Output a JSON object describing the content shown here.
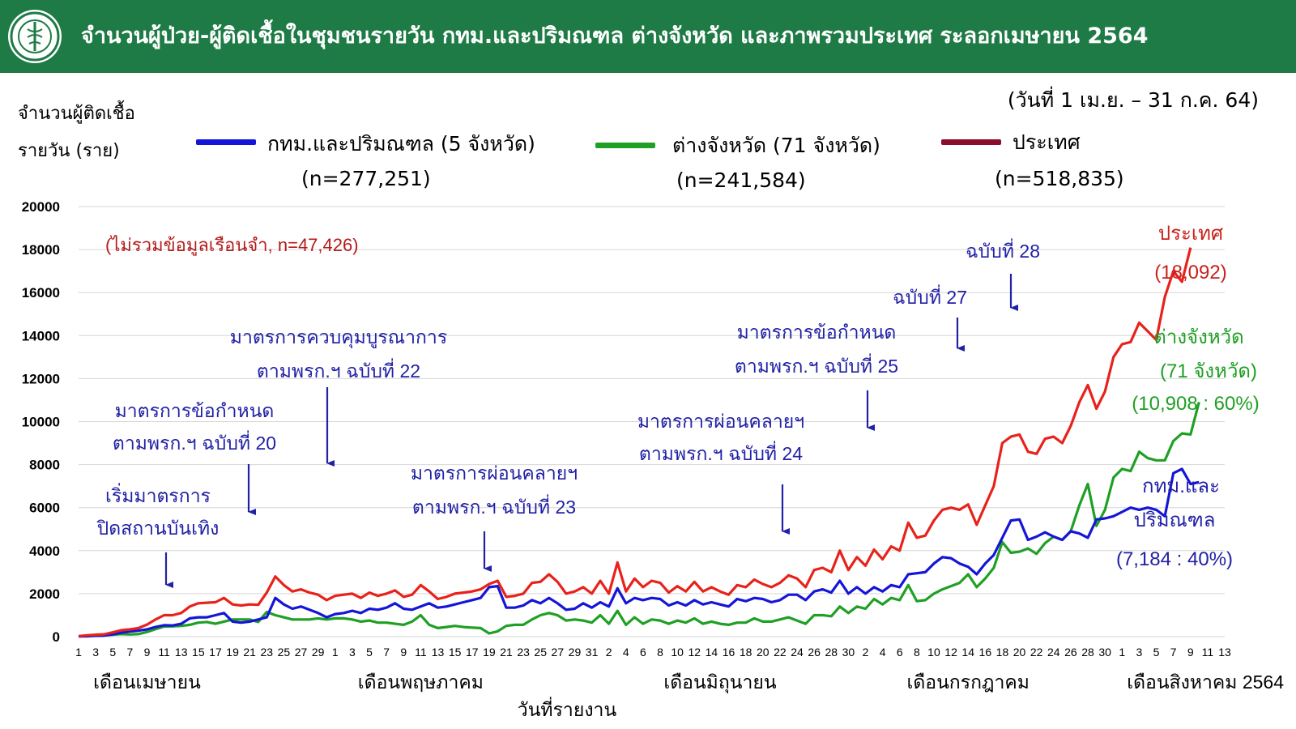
{
  "header": {
    "title": "จำนวนผู้ป่วย-ผู้ติดเชื้อในชุมชนรายวัน กทม.และปริมณฑล ต่างจังหวัด และภาพรวมประเทศ ระลอกเมษายน 2564",
    "logo_icon": "ministry-of-public-health-seal-icon",
    "bg_color": "#1e7b45"
  },
  "period_label": "(วันที่ 1 เม.ย. – 31 ก.ค. 64)",
  "ylabel_line1": "จำนวนผู้ติดเชื้อ",
  "ylabel_line2": "รายวัน (ราย)",
  "legend": [
    {
      "name": "กทม.และปริมณฑล (5 จังหวัด)",
      "n": "(n=277,251)",
      "color": "#1515d8"
    },
    {
      "name": "ต่างจังหวัด (71 จังหวัด)",
      "n": "(n=241,584)",
      "color": "#1fa024"
    },
    {
      "name": "ประเทศ",
      "n": "(n=518,835)",
      "color": "#8b0d2e"
    }
  ],
  "prison_note": "(ไม่รวมข้อมูลเรือนจำ, n=47,426)",
  "annotations": [
    {
      "lines": [
        "เริ่มมาตรการ",
        "ปิดสถานบันเทิง"
      ],
      "day": 11
    },
    {
      "lines": [
        "มาตรการข้อกำหนด",
        "ตามพรก.ฯ ฉบับที่ 20"
      ],
      "day": 18
    },
    {
      "lines": [
        "มาตรการควบคุมบูรณาการ",
        "ตามพรก.ฯ ฉบับที่ 22"
      ],
      "day": 29
    },
    {
      "lines": [
        "มาตรการผ่อนคลายฯ",
        "ตามพรก.ฯ ฉบับที่ 23"
      ],
      "day": 48
    },
    {
      "lines": [
        "มาตรการผ่อนคลายฯ",
        "ตามพรก.ฯ ฉบับที่ 24"
      ],
      "day": 82
    },
    {
      "lines": [
        "มาตรการข้อกำหนด",
        "ตามพรก.ฯ ฉบับที่ 25"
      ],
      "day": 92
    },
    {
      "lines": [
        "ฉบับที่ 27"
      ],
      "day": 102
    },
    {
      "lines": [
        "ฉบับที่ 28"
      ],
      "day": 108
    }
  ],
  "end_labels": {
    "country": [
      "ประเทศ",
      "(18,092)"
    ],
    "provinces": [
      "ต่างจังหวัด",
      "(71 จังหวัด)",
      "(10,908 : 60%)"
    ],
    "bkk": [
      "กทม.และ",
      "ปริมณฑล",
      "(7,184 : 40%)"
    ]
  },
  "month_labels": [
    {
      "label": "เดือนเมษายน",
      "day": 8
    },
    {
      "label": "เดือนพฤษภาคม",
      "day": 40
    },
    {
      "label": "เดือนมิถุนายน",
      "day": 75
    },
    {
      "label": "เดือนกรกฎาคม",
      "day": 104
    },
    {
      "label": "เดือนสิงหาคม 2564",
      "day": 131
    }
  ],
  "xlabel": "วันที่รายงาน",
  "chart_data": {
    "type": "line",
    "x_tick_labels": [
      "1",
      "3",
      "5",
      "7",
      "9",
      "11",
      "13",
      "15",
      "17",
      "19",
      "21",
      "23",
      "25",
      "27",
      "29",
      "1",
      "3",
      "5",
      "7",
      "9",
      "11",
      "13",
      "15",
      "17",
      "19",
      "21",
      "23",
      "25",
      "27",
      "29",
      "31",
      "2",
      "4",
      "6",
      "8",
      "10",
      "12",
      "14",
      "16",
      "18",
      "20",
      "22",
      "24",
      "26",
      "28",
      "30",
      "2",
      "4",
      "6",
      "8",
      "10",
      "12",
      "14",
      "16",
      "18",
      "20",
      "22",
      "24",
      "26",
      "28",
      "30",
      "1",
      "3",
      "5",
      "7",
      "9",
      "11",
      "13"
    ],
    "ylim": [
      0,
      20000
    ],
    "yticks": [
      "0",
      "2000",
      "4000",
      "6000",
      "8000",
      "10000",
      "12000",
      "14000",
      "16000",
      "18000",
      "20000"
    ],
    "grid": "horizontal",
    "series": [
      {
        "name": "ประเทศ",
        "color": "#e8221b",
        "values": [
          26,
          60,
          90,
          110,
          200,
          300,
          340,
          400,
          560,
          800,
          1000,
          1000,
          1100,
          1400,
          1550,
          1580,
          1600,
          1800,
          1500,
          1450,
          1500,
          1480,
          2050,
          2800,
          2400,
          2100,
          2200,
          2050,
          1950,
          1700,
          1900,
          1950,
          2000,
          1800,
          2050,
          1900,
          2000,
          2150,
          1850,
          1950,
          2400,
          2100,
          1750,
          1850,
          2000,
          2050,
          2100,
          2200,
          2450,
          2600,
          1850,
          1900,
          2000,
          2500,
          2550,
          2900,
          2550,
          2000,
          2100,
          2300,
          2000,
          2600,
          2000,
          3450,
          2100,
          2700,
          2300,
          2600,
          2500,
          2050,
          2350,
          2100,
          2550,
          2100,
          2300,
          2100,
          1950,
          2400,
          2300,
          2650,
          2450,
          2300,
          2500,
          2850,
          2700,
          2300,
          3100,
          3200,
          3000,
          4000,
          3100,
          3700,
          3300,
          4050,
          3600,
          4200,
          4000,
          5300,
          4600,
          4700,
          5400,
          5900,
          6000,
          5900,
          6150,
          5200,
          6100,
          7000,
          9000,
          9300,
          9400,
          8600,
          8500,
          9200,
          9300,
          9000,
          9800,
          10900,
          11700,
          10600,
          11400,
          13000,
          13600,
          13700,
          14600,
          14200,
          13800,
          15800,
          17000,
          16500,
          18092
        ]
      },
      {
        "name": "กทม.และปริมณฑล (5 จังหวัด)",
        "color": "#1515d8",
        "values": [
          10,
          20,
          40,
          50,
          110,
          180,
          240,
          280,
          340,
          450,
          530,
          520,
          600,
          850,
          900,
          900,
          1000,
          1100,
          700,
          650,
          700,
          800,
          900,
          1800,
          1500,
          1300,
          1400,
          1250,
          1100,
          900,
          1050,
          1100,
          1200,
          1100,
          1300,
          1250,
          1350,
          1550,
          1300,
          1250,
          1400,
          1550,
          1350,
          1400,
          1500,
          1600,
          1700,
          1800,
          2300,
          2350,
          1350,
          1350,
          1450,
          1700,
          1550,
          1800,
          1550,
          1250,
          1300,
          1550,
          1350,
          1600,
          1400,
          2250,
          1550,
          1800,
          1700,
          1800,
          1750,
          1450,
          1600,
          1450,
          1700,
          1500,
          1600,
          1500,
          1400,
          1750,
          1650,
          1800,
          1750,
          1600,
          1700,
          1950,
          1950,
          1700,
          2100,
          2200,
          2050,
          2600,
          2000,
          2300,
          2000,
          2300,
          2100,
          2400,
          2300,
          2900,
          2950,
          3000,
          3400,
          3700,
          3650,
          3400,
          3250,
          2900,
          3400,
          3800,
          4600,
          5400,
          5450,
          4500,
          4650,
          4850,
          4650,
          4500,
          4900,
          4800,
          4600,
          5450,
          5500,
          5600,
          5800,
          6000,
          5900,
          6000,
          5900,
          5600,
          7600,
          7800,
          7100,
          7184
        ]
      },
      {
        "name": "ต่างจังหวัด (71 จังหวัด)",
        "color": "#1fa024",
        "values": [
          16,
          40,
          50,
          60,
          90,
          120,
          100,
          120,
          220,
          350,
          470,
          480,
          500,
          550,
          650,
          680,
          600,
          700,
          800,
          800,
          800,
          680,
          1150,
          1000,
          900,
          800,
          800,
          800,
          850,
          800,
          850,
          850,
          800,
          700,
          750,
          650,
          650,
          600,
          550,
          700,
          1000,
          550,
          400,
          450,
          500,
          450,
          420,
          400,
          150,
          250,
          500,
          550,
          550,
          800,
          1000,
          1100,
          1000,
          750,
          800,
          750,
          650,
          1000,
          600,
          1200,
          550,
          900,
          600,
          800,
          750,
          600,
          750,
          650,
          850,
          600,
          700,
          600,
          550,
          650,
          650,
          850,
          700,
          700,
          800,
          900,
          750,
          600,
          1000,
          1000,
          950,
          1400,
          1100,
          1400,
          1300,
          1750,
          1500,
          1800,
          1700,
          2400,
          1650,
          1700,
          2000,
          2200,
          2350,
          2500,
          2900,
          2300,
          2700,
          3200,
          4400,
          3900,
          3950,
          4100,
          3850,
          4350,
          4650,
          4500,
          4900,
          6100,
          7100,
          5150,
          5900,
          7400,
          7800,
          7700,
          8600,
          8300,
          8200,
          8200,
          9100,
          9450,
          9400,
          10908
        ]
      }
    ]
  }
}
